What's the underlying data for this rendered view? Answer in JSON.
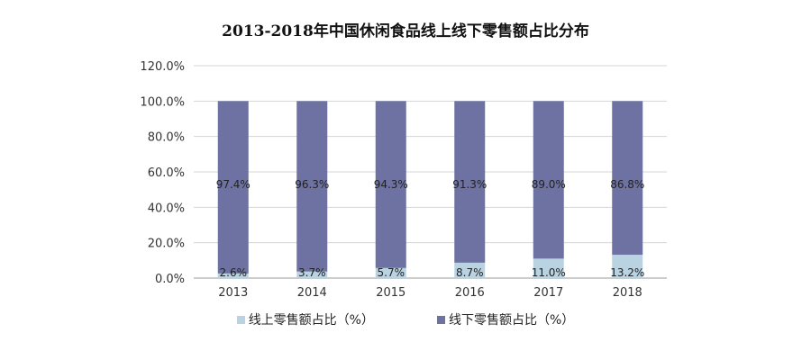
{
  "chart_data": {
    "type": "bar",
    "stacked": true,
    "title": "2013-2018年中国休闲食品线上线下零售额占比分布",
    "categories": [
      "2013",
      "2014",
      "2015",
      "2016",
      "2017",
      "2018"
    ],
    "series": [
      {
        "name": "线上零售额占比（%）",
        "color": "#b9d3e3",
        "values": [
          2.6,
          3.7,
          5.7,
          8.7,
          11.0,
          13.2
        ],
        "labels": [
          "2.6%",
          "3.7%",
          "5.7%",
          "8.7%",
          "11.0%",
          "13.2%"
        ]
      },
      {
        "name": "线下零售额占比（%）",
        "color": "#6e72a2",
        "values": [
          97.4,
          96.3,
          94.3,
          91.3,
          89.0,
          86.8
        ],
        "labels": [
          "97.4%",
          "96.3%",
          "94.3%",
          "91.3%",
          "89.0%",
          "86.8%"
        ]
      }
    ],
    "ylim": [
      0,
      120
    ],
    "yticks": [
      "0.0%",
      "20.0%",
      "40.0%",
      "60.0%",
      "80.0%",
      "100.0%",
      "120.0%"
    ],
    "grid": true,
    "legend_position": "bottom"
  }
}
